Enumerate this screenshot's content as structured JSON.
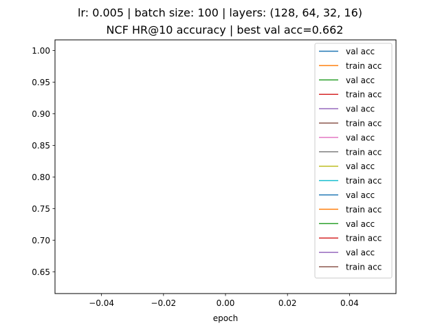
{
  "chart_data": {
    "type": "line",
    "title": "lr: 0.005 | batch size: 100 | layers: (128, 64, 32, 16)",
    "subtitle": "NCF HR@10 accuracy | best val acc=0.662",
    "xlabel": "epoch",
    "ylabel": "",
    "xlim": [
      -0.055,
      0.055
    ],
    "ylim": [
      0.6155,
      1.0169
    ],
    "xticks": [
      -0.04,
      -0.02,
      0.0,
      0.02,
      0.04
    ],
    "xtick_labels": [
      "−0.04",
      "−0.02",
      "0.00",
      "0.02",
      "0.04"
    ],
    "yticks": [
      0.65,
      0.7,
      0.75,
      0.8,
      0.85,
      0.9,
      0.95,
      1.0
    ],
    "ytick_labels": [
      "0.65",
      "0.70",
      "0.75",
      "0.80",
      "0.85",
      "0.90",
      "0.95",
      "1.00"
    ],
    "grid": false,
    "legend_position": "top-right",
    "series": [
      {
        "name": "val acc",
        "color": "#1f77b4",
        "x": [],
        "y": []
      },
      {
        "name": "train acc",
        "color": "#ff7f0e",
        "x": [],
        "y": []
      },
      {
        "name": "val acc",
        "color": "#2ca02c",
        "x": [],
        "y": []
      },
      {
        "name": "train acc",
        "color": "#d62728",
        "x": [],
        "y": []
      },
      {
        "name": "val acc",
        "color": "#9467bd",
        "x": [],
        "y": []
      },
      {
        "name": "train acc",
        "color": "#8c564b",
        "x": [],
        "y": []
      },
      {
        "name": "val acc",
        "color": "#e377c2",
        "x": [],
        "y": []
      },
      {
        "name": "train acc",
        "color": "#7f7f7f",
        "x": [],
        "y": []
      },
      {
        "name": "val acc",
        "color": "#bcbd22",
        "x": [],
        "y": []
      },
      {
        "name": "train acc",
        "color": "#17becf",
        "x": [],
        "y": []
      },
      {
        "name": "val acc",
        "color": "#1f77b4",
        "x": [],
        "y": []
      },
      {
        "name": "train acc",
        "color": "#ff7f0e",
        "x": [],
        "y": []
      },
      {
        "name": "val acc",
        "color": "#2ca02c",
        "x": [],
        "y": []
      },
      {
        "name": "train acc",
        "color": "#d62728",
        "x": [],
        "y": []
      },
      {
        "name": "val acc",
        "color": "#9467bd",
        "x": [],
        "y": []
      },
      {
        "name": "train acc",
        "color": "#8c564b",
        "x": [],
        "y": []
      }
    ]
  }
}
